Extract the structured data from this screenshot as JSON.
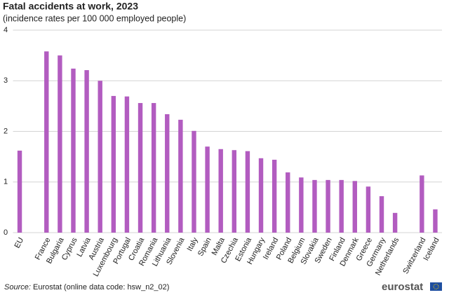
{
  "chart_data": {
    "type": "bar",
    "title": "Fatal accidents at work, 2023",
    "subtitle": "(incidence rates per 100 000 employed people)",
    "categories": [
      "EU",
      null,
      "France",
      "Bulgaria",
      "Cyprus",
      "Latvia",
      "Austria",
      "Luxembourg",
      "Portugal",
      "Croatia",
      "Romania",
      "Lithuania",
      "Slovenia",
      "Italy",
      "Spain",
      "Malta",
      "Czechia",
      "Estonia",
      "Hungary",
      "Ireland",
      "Poland",
      "Belgium",
      "Slovakia",
      "Sweden",
      "Finland",
      "Denmark",
      "Greece",
      "Germany",
      "Netherlands",
      null,
      "Switzerland",
      "Iceland"
    ],
    "values": [
      1.62,
      null,
      3.58,
      3.5,
      3.24,
      3.21,
      3.0,
      2.7,
      2.69,
      2.56,
      2.56,
      2.34,
      2.23,
      2.01,
      1.7,
      1.65,
      1.63,
      1.61,
      1.47,
      1.44,
      1.19,
      1.09,
      1.04,
      1.04,
      1.04,
      1.02,
      0.91,
      0.72,
      0.39,
      null,
      1.13,
      0.46
    ],
    "color": "#b25cc0",
    "ylim": [
      0,
      4
    ],
    "yticks": [
      0,
      1,
      2,
      3,
      4
    ],
    "grid": true,
    "source_label": "Source:",
    "source": "Eurostat (online data code: hsw_n2_02)",
    "logo": "eurostat"
  }
}
